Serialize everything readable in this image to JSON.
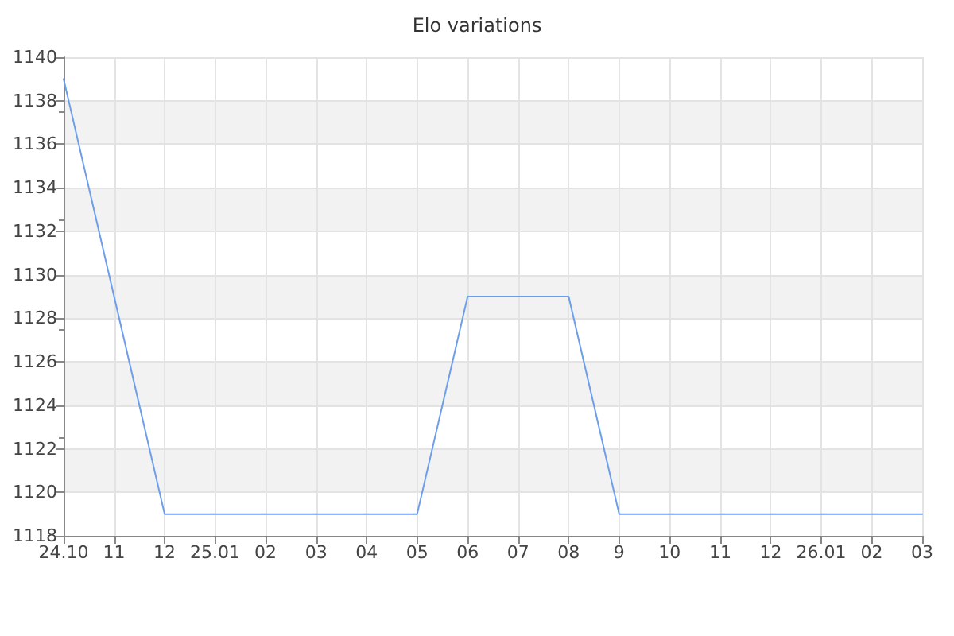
{
  "chart_data": {
    "type": "line",
    "title": "Elo variations",
    "categories": [
      "24.10",
      "11",
      "12",
      "25.01",
      "02",
      "03",
      "04",
      "05",
      "06",
      "07",
      "08",
      "9",
      "10",
      "11",
      "12",
      "26.01",
      "02",
      "03"
    ],
    "series": [
      {
        "color": "#6d9eeb",
        "values": [
          1139,
          1129,
          1119,
          1119,
          1119,
          1119,
          1119,
          1119,
          1129,
          1129,
          1129,
          1119,
          1119,
          1119,
          1119,
          1119,
          1119,
          1119
        ]
      }
    ],
    "ylim": [
      1118,
      1140
    ],
    "yticks": [
      1118,
      1120,
      1122,
      1124,
      1126,
      1128,
      1130,
      1132,
      1134,
      1136,
      1138,
      1140
    ],
    "grid": true,
    "marker": "none",
    "line_style": "solid"
  }
}
